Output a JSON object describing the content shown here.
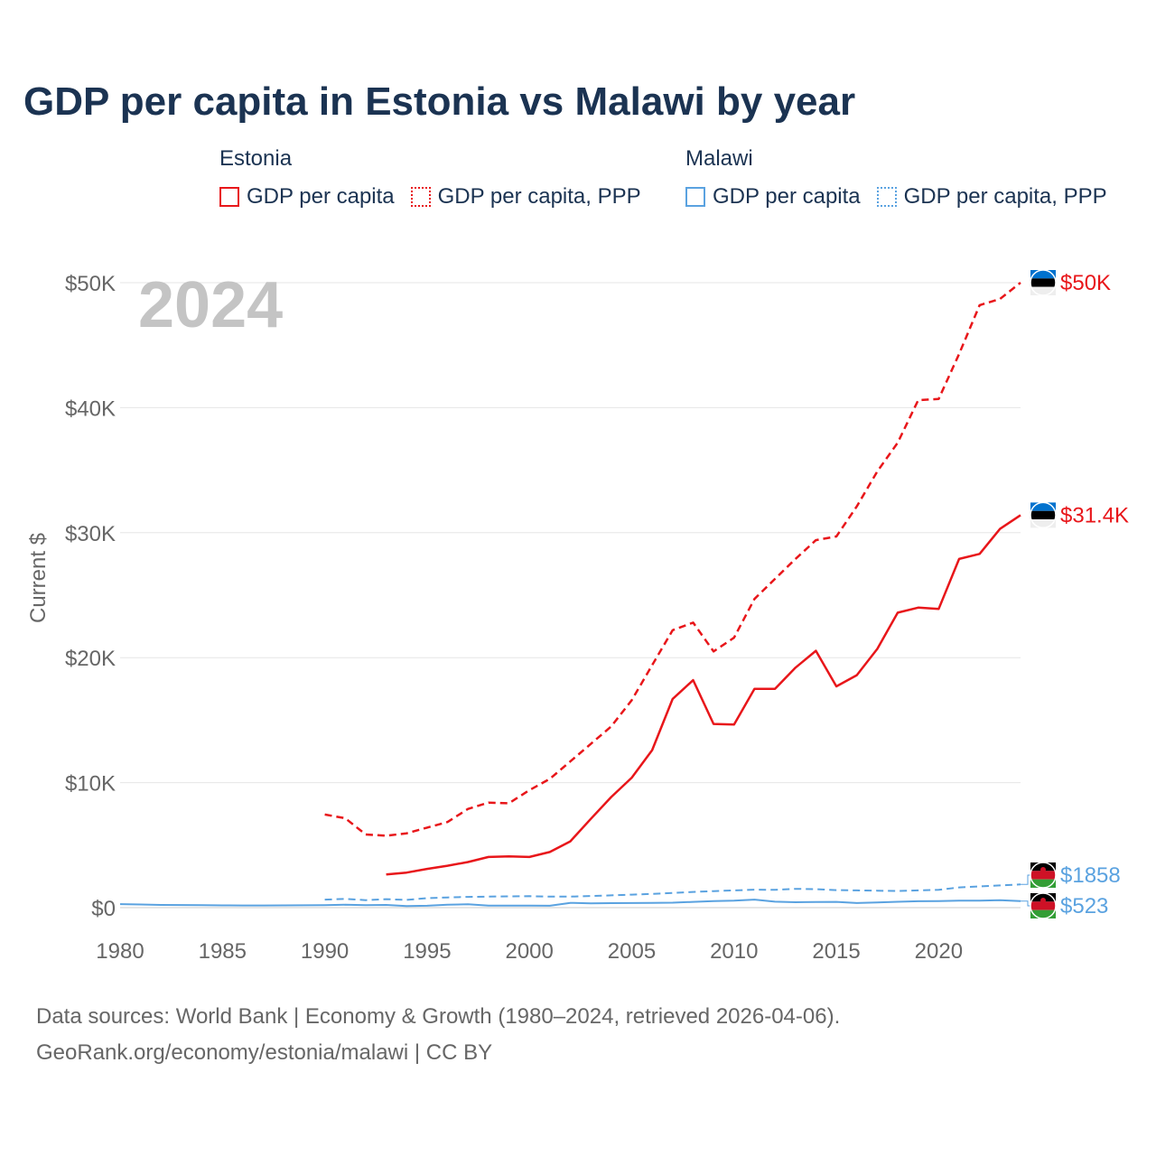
{
  "title": "GDP per capita in Estonia vs Malawi by year",
  "year_label": "2024",
  "legend": {
    "groups": [
      {
        "name": "Estonia",
        "items": [
          {
            "label": "GDP per capita",
            "style": "solid",
            "color": "#e8161a"
          },
          {
            "label": "GDP per capita, PPP",
            "style": "dotted",
            "color": "#e8161a"
          }
        ]
      },
      {
        "name": "Malawi",
        "items": [
          {
            "label": "GDP per capita",
            "style": "solid",
            "color": "#5aa2e0"
          },
          {
            "label": "GDP per capita, PPP",
            "style": "dotted",
            "color": "#5aa2e0"
          }
        ]
      }
    ]
  },
  "source": {
    "line1": "Data sources: World Bank | Economy & Growth (1980–2024, retrieved 2026-04-06).",
    "line2": "GeoRank.org/economy/estonia/malawi | CC BY"
  },
  "colors": {
    "estonia": "#e8161a",
    "malawi": "#5aa2e0",
    "grid": "#e6e6e6",
    "axis_text": "#666666"
  },
  "chart_data": {
    "type": "line",
    "ylabel": "Current $",
    "xlabel": "",
    "xlim": [
      1980,
      2024
    ],
    "ylim": [
      0,
      50000
    ],
    "x_ticks": [
      {
        "value": 1980,
        "label": "1980"
      },
      {
        "value": 1985,
        "label": "1985"
      },
      {
        "value": 1990,
        "label": "1990"
      },
      {
        "value": 1995,
        "label": "1995"
      },
      {
        "value": 2000,
        "label": "2000"
      },
      {
        "value": 2005,
        "label": "2005"
      },
      {
        "value": 2010,
        "label": "2010"
      },
      {
        "value": 2015,
        "label": "2015"
      },
      {
        "value": 2020,
        "label": "2020"
      }
    ],
    "y_ticks": [
      {
        "value": 0,
        "label": "$0"
      },
      {
        "value": 10000,
        "label": "$10K"
      },
      {
        "value": 20000,
        "label": "$20K"
      },
      {
        "value": 30000,
        "label": "$30K"
      },
      {
        "value": 40000,
        "label": "$40K"
      },
      {
        "value": 50000,
        "label": "$50K"
      }
    ],
    "series": [
      {
        "name": "Estonia GDP per capita, PPP",
        "country": "estonia",
        "dash": true,
        "end_label": "$50K",
        "x": [
          1990,
          1991,
          1992,
          1993,
          1994,
          1995,
          1996,
          1997,
          1998,
          1999,
          2000,
          2001,
          2002,
          2003,
          2004,
          2005,
          2006,
          2007,
          2008,
          2009,
          2010,
          2011,
          2012,
          2013,
          2014,
          2015,
          2016,
          2017,
          2018,
          2019,
          2020,
          2021,
          2022,
          2023,
          2024
        ],
        "values": [
          7450,
          7150,
          5850,
          5750,
          5950,
          6400,
          6850,
          7900,
          8400,
          8350,
          9400,
          10300,
          11700,
          13100,
          14500,
          16600,
          19400,
          22200,
          22800,
          20500,
          21600,
          24700,
          26300,
          27900,
          29400,
          29700,
          32100,
          34900,
          37200,
          40600,
          40700,
          44300,
          48200,
          48700,
          50000
        ]
      },
      {
        "name": "Estonia GDP per capita",
        "country": "estonia",
        "dash": false,
        "end_label": "$31.4K",
        "x": [
          1993,
          1994,
          1995,
          1996,
          1997,
          1998,
          1999,
          2000,
          2001,
          2002,
          2003,
          2004,
          2005,
          2006,
          2007,
          2008,
          2009,
          2010,
          2011,
          2012,
          2013,
          2014,
          2015,
          2016,
          2017,
          2018,
          2019,
          2020,
          2021,
          2022,
          2023,
          2024
        ],
        "values": [
          2650,
          2800,
          3100,
          3350,
          3650,
          4050,
          4100,
          4050,
          4450,
          5300,
          7100,
          8850,
          10400,
          12600,
          16700,
          18200,
          14700,
          14650,
          17500,
          17500,
          19200,
          20550,
          17700,
          18600,
          20700,
          23600,
          24000,
          23900,
          27900,
          28300,
          30300,
          31400
        ]
      },
      {
        "name": "Malawi GDP per capita, PPP",
        "country": "malawi",
        "dash": true,
        "end_label": "$1858",
        "x": [
          1990,
          1991,
          1992,
          1993,
          1994,
          1995,
          1996,
          1997,
          1998,
          1999,
          2000,
          2001,
          2002,
          2003,
          2004,
          2005,
          2006,
          2007,
          2008,
          2009,
          2010,
          2011,
          2012,
          2013,
          2014,
          2015,
          2016,
          2017,
          2018,
          2019,
          2020,
          2021,
          2022,
          2023,
          2024
        ],
        "values": [
          640,
          700,
          600,
          680,
          620,
          760,
          820,
          860,
          880,
          900,
          920,
          880,
          880,
          930,
          980,
          1040,
          1100,
          1180,
          1260,
          1320,
          1380,
          1440,
          1420,
          1500,
          1480,
          1400,
          1380,
          1360,
          1330,
          1380,
          1420,
          1620,
          1700,
          1780,
          1858
        ]
      },
      {
        "name": "Malawi GDP per capita",
        "country": "malawi",
        "dash": false,
        "end_label": "$523",
        "x": [
          1980,
          1981,
          1982,
          1983,
          1984,
          1985,
          1986,
          1987,
          1988,
          1989,
          1990,
          1991,
          1992,
          1993,
          1994,
          1995,
          1996,
          1997,
          1998,
          1999,
          2000,
          2001,
          2002,
          2003,
          2004,
          2005,
          2006,
          2007,
          2008,
          2009,
          2010,
          2011,
          2012,
          2013,
          2014,
          2015,
          2016,
          2017,
          2018,
          2019,
          2020,
          2021,
          2022,
          2023,
          2024
        ],
        "values": [
          280,
          250,
          220,
          210,
          200,
          180,
          170,
          170,
          180,
          190,
          200,
          230,
          200,
          220,
          130,
          150,
          240,
          270,
          160,
          160,
          160,
          150,
          380,
          350,
          360,
          370,
          380,
          400,
          460,
          520,
          560,
          640,
          480,
          430,
          450,
          460,
          370,
          420,
          470,
          510,
          530,
          560,
          560,
          600,
          523
        ]
      }
    ]
  }
}
